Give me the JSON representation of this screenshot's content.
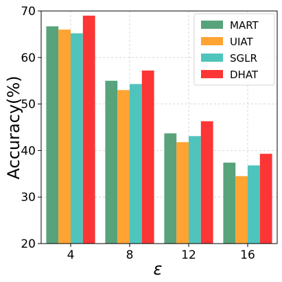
{
  "chart_data": {
    "type": "bar",
    "xlabel": "ε",
    "ylabel": "Accuracy(%)",
    "categories": [
      "4",
      "8",
      "12",
      "16"
    ],
    "ylim": [
      20,
      70
    ],
    "yticks": [
      "20",
      "30",
      "40",
      "50",
      "60",
      "70"
    ],
    "grid": true,
    "legend_position": "top-right",
    "series": [
      {
        "name": "MART",
        "color": "#58a37b",
        "values": [
          66.7,
          55.0,
          43.7,
          37.4
        ]
      },
      {
        "name": "UIAT",
        "color": "#ffa433",
        "values": [
          66.0,
          53.0,
          41.8,
          34.5
        ]
      },
      {
        "name": "SGLR",
        "color": "#4fc4bc",
        "values": [
          65.2,
          54.3,
          43.1,
          36.8
        ]
      },
      {
        "name": "DHAT",
        "color": "#fc3535",
        "values": [
          69.0,
          57.2,
          46.3,
          39.3
        ]
      }
    ]
  }
}
